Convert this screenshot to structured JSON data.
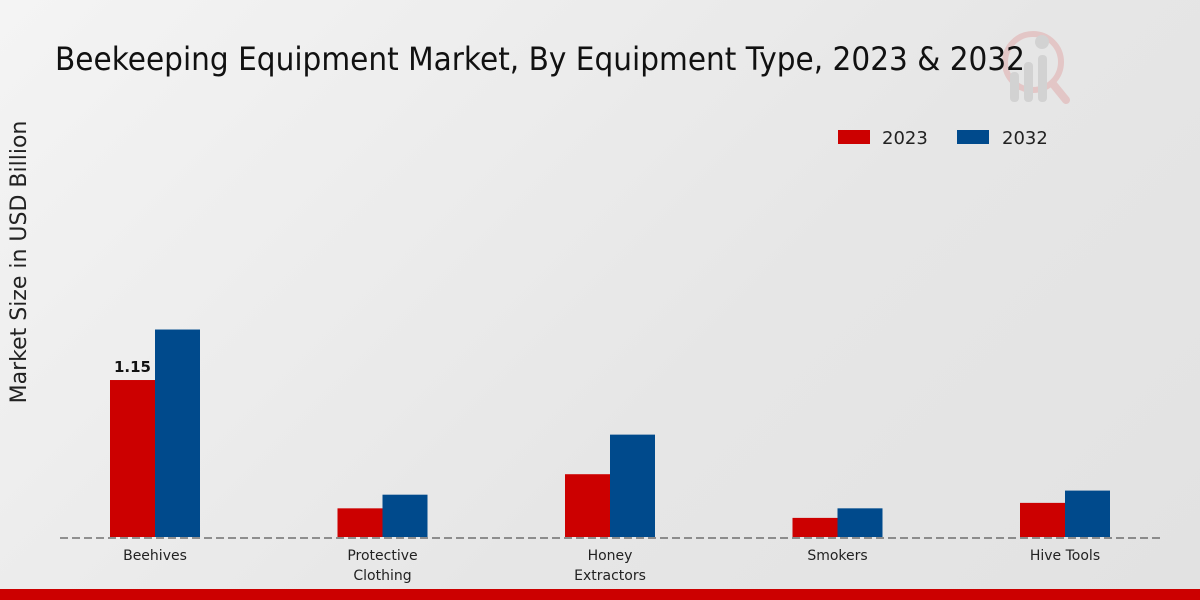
{
  "chart_data": {
    "type": "bar",
    "title": "Beekeeping Equipment Market, By Equipment Type, 2023 & 2032",
    "xlabel": "",
    "ylabel": "Market Size in USD Billion",
    "categories": [
      "Beehives",
      "Protective\nClothing",
      "Honey\nExtractors",
      "Smokers",
      "Hive Tools"
    ],
    "series": [
      {
        "name": "2023",
        "color": "#cc0000",
        "values": [
          1.15,
          0.21,
          0.46,
          0.14,
          0.25
        ]
      },
      {
        "name": "2032",
        "color": "#004a8c",
        "values": [
          1.52,
          0.31,
          0.75,
          0.21,
          0.34
        ]
      }
    ],
    "data_labels": [
      {
        "series": "2023",
        "category": "Beehives",
        "text": "1.15"
      }
    ],
    "ylim": [
      0,
      3.0
    ],
    "grid": false,
    "legend_position": "top-right"
  }
}
